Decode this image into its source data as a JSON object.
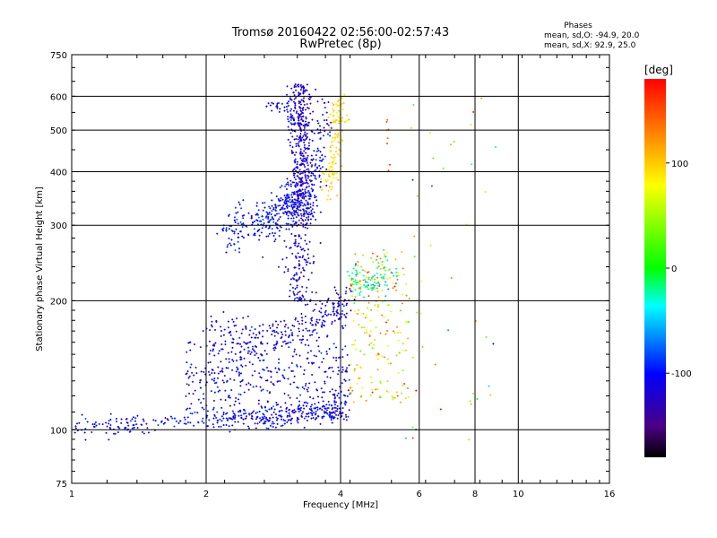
{
  "chart_data": {
    "type": "scatter",
    "title": "Tromsø 20160422 02:56:00-02:57:43",
    "subtitle": "RwPretec (8p)",
    "xlabel": "Frequency [MHz]",
    "ylabel": "Stationary phase Virtual Height [km]",
    "xscale": "log2",
    "yscale": "log",
    "xlim": [
      1,
      16
    ],
    "ylim": [
      75,
      750
    ],
    "x_ticks": [
      1,
      2,
      4,
      6,
      8,
      10,
      16
    ],
    "x_tick_labels": [
      "1",
      "2",
      "4",
      "6",
      "8",
      "10",
      "16"
    ],
    "x_gridlines": [
      2,
      4,
      6,
      8,
      10
    ],
    "y_ticks": [
      75,
      100,
      200,
      300,
      400,
      500,
      600,
      750
    ],
    "y_tick_labels": [
      "75",
      "100",
      "200",
      "300",
      "400",
      "500",
      "600",
      "750"
    ],
    "y_gridlines": [
      100,
      200,
      300,
      400,
      500,
      600
    ],
    "grid": true,
    "phase_info": {
      "title": "Phases",
      "line_o": "mean, sd,O: -94.9, 20.0",
      "line_x": "mean, sd,X:  92.9, 25.0"
    },
    "colorbar": {
      "label": "[deg]",
      "min": -180,
      "max": 180,
      "ticks": [
        100,
        0,
        -100
      ],
      "tick_labels": [
        "100",
        "0",
        "-100"
      ]
    },
    "clusters": [
      {
        "name": "E/F1 low trace",
        "shape": "curve",
        "path": [
          [
            1.0,
            100
          ],
          [
            1.4,
            103
          ],
          [
            2.0,
            106
          ],
          [
            2.6,
            106
          ],
          [
            3.2,
            108
          ],
          [
            3.8,
            111
          ],
          [
            4.1,
            112
          ]
        ],
        "spread": 0.03,
        "n": 380,
        "phase_mean": -105,
        "phase_sd": 12
      },
      {
        "name": "low scatter band",
        "shape": "box",
        "x": [
          1.8,
          4.2
        ],
        "y": [
          105,
          160
        ],
        "n": 420,
        "phase_mean": -110,
        "phase_sd": 14
      },
      {
        "name": "F1 mid band",
        "shape": "curve",
        "path": [
          [
            2.0,
            170
          ],
          [
            2.6,
            165
          ],
          [
            3.2,
            170
          ],
          [
            3.8,
            185
          ],
          [
            4.1,
            195
          ]
        ],
        "spread": 0.05,
        "n": 260,
        "phase_mean": -112,
        "phase_sd": 12
      },
      {
        "name": "F1 vertical cusp",
        "shape": "vline",
        "x": 3.25,
        "y": [
          195,
          285
        ],
        "xspread": 0.04,
        "n": 120,
        "phase_mean": -115,
        "phase_sd": 10
      },
      {
        "name": "F1 x-mode",
        "shape": "box",
        "x": [
          4.2,
          5.7
        ],
        "y": [
          115,
          260
        ],
        "n": 200,
        "phase_mean": 95,
        "phase_sd": 35
      },
      {
        "name": "F1 x-mode upper band",
        "shape": "curve",
        "path": [
          [
            4.2,
            225
          ],
          [
            4.7,
            220
          ],
          [
            5.2,
            235
          ]
        ],
        "spread": 0.05,
        "n": 90,
        "phase_mean": -25,
        "phase_sd": 25
      },
      {
        "name": "F2 lower trace",
        "shape": "curve",
        "path": [
          [
            2.2,
            290
          ],
          [
            2.6,
            300
          ],
          [
            3.0,
            330
          ],
          [
            3.3,
            360
          ]
        ],
        "spread": 0.06,
        "n": 330,
        "phase_mean": -98,
        "phase_sd": 12
      },
      {
        "name": "F2 cusp",
        "shape": "vline",
        "x": 3.25,
        "y": [
          300,
          640
        ],
        "xspread": 0.03,
        "n": 420,
        "phase_mean": -120,
        "phase_sd": 12
      },
      {
        "name": "F2 upper tail",
        "shape": "curve",
        "path": [
          [
            2.8,
            580
          ],
          [
            3.0,
            560
          ],
          [
            3.15,
            520
          ]
        ],
        "spread": 0.03,
        "n": 40,
        "phase_mean": -105,
        "phase_sd": 10
      },
      {
        "name": "F2 right trace",
        "shape": "curve",
        "path": [
          [
            3.4,
            310
          ],
          [
            3.5,
            380
          ],
          [
            3.6,
            460
          ],
          [
            3.7,
            560
          ]
        ],
        "spread": 0.04,
        "n": 120,
        "phase_mean": -105,
        "phase_sd": 12
      },
      {
        "name": "F2 x-mode",
        "shape": "curve",
        "path": [
          [
            3.7,
            360
          ],
          [
            3.85,
            410
          ],
          [
            3.95,
            520
          ],
          [
            4.0,
            600
          ]
        ],
        "spread": 0.04,
        "n": 130,
        "phase_mean": 95,
        "phase_sd": 10
      },
      {
        "name": "sparse high column",
        "shape": "vline",
        "x": 5.1,
        "y": [
          400,
          550
        ],
        "xspread": 0.005,
        "n": 8,
        "phase_mean": 150,
        "phase_sd": 15
      },
      {
        "name": "sparse scatter",
        "shape": "box",
        "x": [
          5.5,
          9.0
        ],
        "y": [
          90,
          600
        ],
        "n": 45,
        "phase_mean": 40,
        "phase_sd": 90
      }
    ]
  }
}
